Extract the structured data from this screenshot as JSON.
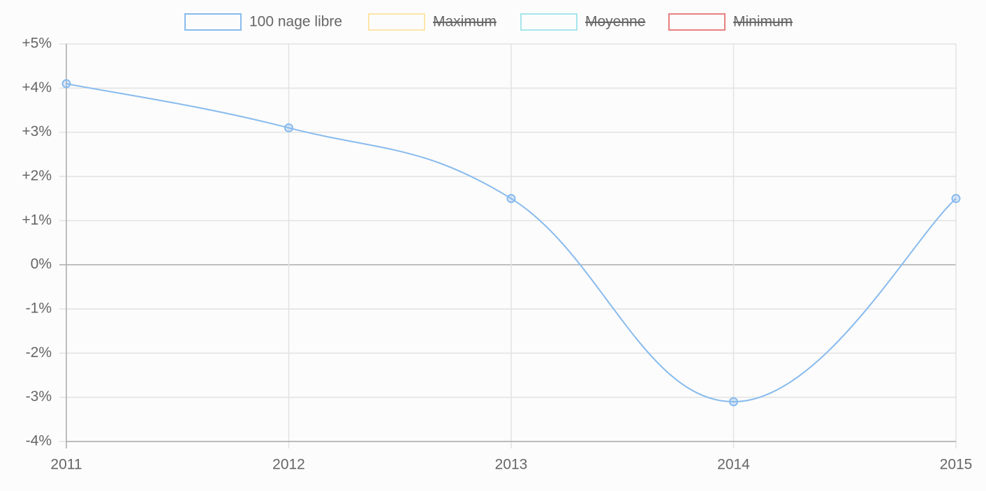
{
  "chart_data": {
    "type": "line",
    "categories": [
      "2011",
      "2012",
      "2013",
      "2014",
      "2015"
    ],
    "series": [
      {
        "name": "100 nage libre",
        "color": "#88bbee",
        "values": [
          4.1,
          3.1,
          1.5,
          -3.1,
          1.5
        ]
      },
      {
        "name": "Maximum",
        "color": "#ffe6a8",
        "hidden": true
      },
      {
        "name": "Moyenne",
        "color": "#a6e6ea",
        "hidden": true
      },
      {
        "name": "Minimum",
        "color": "#e88080",
        "hidden": true
      }
    ],
    "ylim": [
      -4,
      5
    ],
    "yticks": [
      {
        "value": 5,
        "label": "+5%"
      },
      {
        "value": 4,
        "label": "+4%"
      },
      {
        "value": 3,
        "label": "+3%"
      },
      {
        "value": 2,
        "label": "+2%"
      },
      {
        "value": 1,
        "label": "+1%"
      },
      {
        "value": 0,
        "label": "0%"
      },
      {
        "value": -1,
        "label": "-1%"
      },
      {
        "value": -2,
        "label": "-2%"
      },
      {
        "value": -3,
        "label": "-3%"
      },
      {
        "value": -4,
        "label": "-4%"
      }
    ],
    "grid": true,
    "legend": "top"
  }
}
